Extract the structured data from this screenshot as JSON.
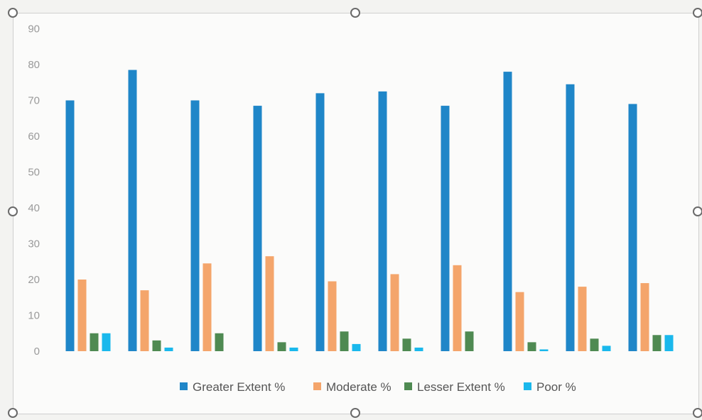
{
  "chart_data": {
    "type": "bar",
    "title": "",
    "xlabel": "",
    "ylabel": "",
    "ylim": [
      0,
      90
    ],
    "yticks": [
      0,
      10,
      20,
      30,
      40,
      50,
      60,
      70,
      80,
      90
    ],
    "grid": false,
    "legend_position": "bottom",
    "categories": [
      "",
      "",
      "",
      "",
      "",
      "",
      "",
      "",
      "",
      ""
    ],
    "series": [
      {
        "name": "Greater Extent %",
        "color": "#1f86c8",
        "values": [
          70,
          78.5,
          70,
          68.5,
          72,
          72.5,
          68.5,
          78,
          74.5,
          69
        ]
      },
      {
        "name": "Moderate %",
        "color": "#f4a56b",
        "values": [
          20,
          17,
          24.5,
          26.5,
          19.5,
          21.5,
          24,
          16.5,
          18,
          19
        ]
      },
      {
        "name": "Lesser Extent %",
        "color": "#4f8a52",
        "values": [
          5,
          3,
          5,
          2.5,
          5.5,
          3.5,
          5.5,
          2.5,
          3.5,
          4.5
        ]
      },
      {
        "name": "Poor %",
        "color": "#1ab8ec",
        "values": [
          5,
          1,
          0,
          1,
          2,
          1,
          0,
          0.5,
          1.5,
          4.5
        ]
      }
    ]
  }
}
